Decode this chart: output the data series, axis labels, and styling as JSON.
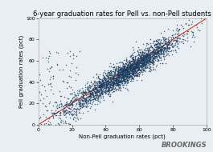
{
  "title": "6-year graduation rates for Pell vs. non-Pell students",
  "xlabel": "Non-Pell graduation rates (pct)",
  "ylabel": "Pell graduation rates (pct)",
  "xlim": [
    0,
    100
  ],
  "ylim": [
    0,
    100
  ],
  "xticks": [
    0,
    20,
    40,
    60,
    80,
    100
  ],
  "yticks": [
    0,
    20,
    40,
    60,
    80,
    100
  ],
  "dot_color": "#1b3a5c",
  "line_color": "#cc2200",
  "background_color": "#e8eef2",
  "outer_background": "#e8eef2",
  "n_points": 2000,
  "seed": 7,
  "brookings_text": "BROOKINGS",
  "title_fontsize": 6.0,
  "label_fontsize": 5.0,
  "tick_fontsize": 4.5,
  "marker_size": 1.2,
  "marker_alpha": 0.75
}
